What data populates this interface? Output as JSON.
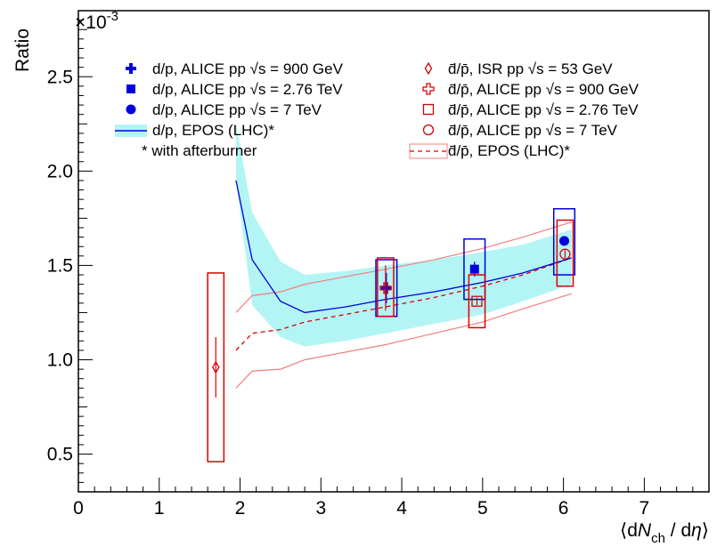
{
  "chart_data": {
    "type": "scatter",
    "ylabel": "Ratio",
    "xlabel": "⟨dN_ch / dη⟩",
    "xlabel_parts": {
      "open": "⟨d",
      "N": "N",
      "sub": "ch",
      "mid": " / d",
      "eta": "η",
      "close": "⟩"
    },
    "y_multiplier": "×10^-3",
    "y_multiplier_parts": {
      "base": "×10",
      "exp": "-3"
    },
    "xlim": [
      0,
      7.8
    ],
    "ylim": [
      0.3,
      2.85
    ],
    "x_ticks": [
      "0",
      "1",
      "2",
      "3",
      "4",
      "5",
      "6",
      "7"
    ],
    "y_ticks": [
      "0.5",
      "1.0",
      "1.5",
      "2.0",
      "2.5"
    ],
    "x_tick_values": [
      0,
      1,
      2,
      3,
      4,
      5,
      6,
      7
    ],
    "y_tick_values": [
      0.5,
      1.0,
      1.5,
      2.0,
      2.5
    ],
    "legend": {
      "left": [
        {
          "marker": "cross",
          "color": "#0000dd",
          "text": "d/p, ALICE pp √s = 900 GeV"
        },
        {
          "marker": "square",
          "color": "#0000dd",
          "text": "d/p, ALICE pp √s = 2.76 TeV"
        },
        {
          "marker": "circle",
          "color": "#0000dd",
          "text": "d/p, ALICE pp √s = 7 TeV"
        },
        {
          "marker": "band-line",
          "color": "#0000dd",
          "text": "d/p, EPOS (LHC)*"
        },
        {
          "marker": "none",
          "color": "#000000",
          "text": "* with afterburner"
        }
      ],
      "right": [
        {
          "marker": "open-diamond",
          "color": "#dd0000",
          "text": "d̄/p̄, ISR pp √s = 53 GeV"
        },
        {
          "marker": "open-cross",
          "color": "#dd0000",
          "text": "d̄/p̄, ALICE pp √s = 900 GeV"
        },
        {
          "marker": "open-square",
          "color": "#dd0000",
          "text": "d̄/p̄, ALICE pp √s = 2.76 TeV"
        },
        {
          "marker": "open-circle",
          "color": "#dd0000",
          "text": "d̄/p̄, ALICE pp √s = 7 TeV"
        },
        {
          "marker": "dashed-band",
          "color": "#dd0000",
          "text": "d̄/p̄, EPOS (LHC)*"
        }
      ]
    },
    "series": [
      {
        "name": "d/p, ALICE pp √s = 900 GeV",
        "marker": "cross",
        "color": "#0000dd",
        "points": [
          {
            "x": 3.81,
            "y": 1.38,
            "ylo": 1.3,
            "yhi": 1.46,
            "syst_lo": 1.23,
            "syst_hi": 1.53,
            "xw": 0.13
          }
        ]
      },
      {
        "name": "d/p, ALICE pp √s = 2.76 TeV",
        "marker": "square",
        "color": "#0000dd",
        "points": [
          {
            "x": 4.9,
            "y": 1.48,
            "ylo": 1.44,
            "yhi": 1.52,
            "syst_lo": 1.32,
            "syst_hi": 1.64,
            "xw": 0.13
          }
        ]
      },
      {
        "name": "d/p, ALICE pp √s = 7 TeV",
        "marker": "circle",
        "color": "#0000dd",
        "points": [
          {
            "x": 6.01,
            "y": 1.63,
            "ylo": 1.61,
            "yhi": 1.65,
            "syst_lo": 1.45,
            "syst_hi": 1.8,
            "xw": 0.13
          }
        ]
      },
      {
        "name": "d̄/p̄, ISR pp √s = 53 GeV",
        "marker": "open-diamond",
        "color": "#dd0000",
        "points": [
          {
            "x": 1.7,
            "y": 0.96,
            "ylo": 0.8,
            "yhi": 1.12,
            "syst_lo": 0.46,
            "syst_hi": 1.46,
            "xw": 0.1
          }
        ]
      },
      {
        "name": "d̄/p̄, ALICE pp √s = 900 GeV",
        "marker": "open-cross",
        "color": "#dd0000",
        "points": [
          {
            "x": 3.8,
            "y": 1.38,
            "ylo": 1.26,
            "yhi": 1.5,
            "syst_lo": 1.23,
            "syst_hi": 1.54,
            "xw": 0.1
          }
        ]
      },
      {
        "name": "d̄/p̄, ALICE pp √s = 2.76 TeV",
        "marker": "open-square",
        "color": "#dd0000",
        "points": [
          {
            "x": 4.93,
            "y": 1.31,
            "ylo": 1.29,
            "yhi": 1.33,
            "syst_lo": 1.17,
            "syst_hi": 1.45,
            "xw": 0.1
          }
        ]
      },
      {
        "name": "d̄/p̄, ALICE pp √s = 7 TeV",
        "marker": "open-circle",
        "color": "#dd0000",
        "points": [
          {
            "x": 6.02,
            "y": 1.56,
            "ylo": 1.54,
            "yhi": 1.58,
            "syst_lo": 1.39,
            "syst_hi": 1.74,
            "xw": 0.1
          }
        ]
      }
    ],
    "epos_dp": {
      "name": "d/p, EPOS (LHC)*",
      "color": "#0000dd",
      "band_color": "#b3f5f5",
      "x": [
        1.95,
        2.15,
        2.5,
        2.8,
        3.3,
        3.8,
        4.4,
        5.0,
        5.5,
        6.1
      ],
      "y": [
        1.95,
        1.53,
        1.31,
        1.25,
        1.28,
        1.32,
        1.36,
        1.41,
        1.46,
        1.54
      ],
      "band_lo": [
        1.95,
        1.29,
        1.12,
        1.07,
        1.1,
        1.14,
        1.19,
        1.24,
        1.31,
        1.4
      ],
      "band_hi": [
        2.25,
        1.78,
        1.52,
        1.45,
        1.47,
        1.5,
        1.53,
        1.57,
        1.61,
        1.69
      ]
    },
    "epos_dbar": {
      "name": "d̄/p̄, EPOS (LHC)*",
      "color": "#dd0000",
      "band_color": "#f08080",
      "x": [
        1.95,
        2.15,
        2.5,
        2.8,
        3.3,
        3.8,
        4.4,
        5.0,
        5.5,
        6.1
      ],
      "y": [
        1.05,
        1.14,
        1.16,
        1.2,
        1.24,
        1.28,
        1.33,
        1.39,
        1.45,
        1.54
      ],
      "band_lo": [
        0.85,
        0.94,
        0.95,
        1.0,
        1.04,
        1.08,
        1.14,
        1.2,
        1.27,
        1.35
      ],
      "band_hi": [
        1.25,
        1.34,
        1.36,
        1.4,
        1.44,
        1.48,
        1.53,
        1.59,
        1.65,
        1.73
      ]
    }
  }
}
